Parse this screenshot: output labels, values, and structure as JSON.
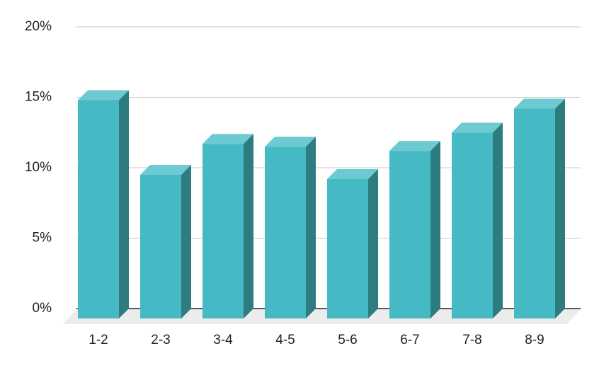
{
  "chart_data": {
    "type": "bar3d",
    "categories": [
      "1-2",
      "2-3",
      "3-4",
      "4-5",
      "5-6",
      "6-7",
      "7-8",
      "8-9"
    ],
    "values": [
      15.5,
      10.2,
      12.4,
      12.2,
      9.9,
      11.9,
      13.2,
      14.9
    ],
    "color": "#45bac5",
    "ylim": [
      0,
      20
    ],
    "yticks": [
      {
        "value": 0,
        "label": "0%"
      },
      {
        "value": 5,
        "label": "5%"
      },
      {
        "value": 10,
        "label": "10%"
      },
      {
        "value": 15,
        "label": "15%"
      },
      {
        "value": 20,
        "label": "20%"
      }
    ],
    "grid": true
  }
}
